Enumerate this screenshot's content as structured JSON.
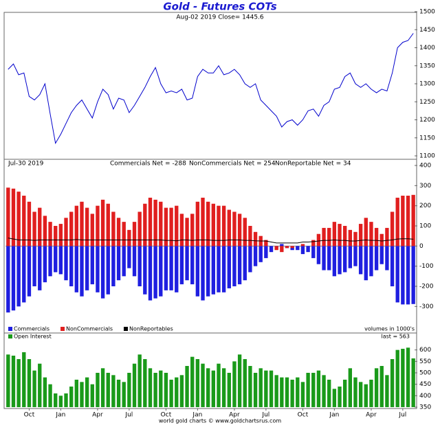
{
  "chart_data": [
    {
      "type": "line",
      "title": "Gold - Futures COTs",
      "subtitle": "Aug-02 2019  Close= 1445.6",
      "color": "#0000cc",
      "values": [
        1340,
        1355,
        1325,
        1330,
        1265,
        1255,
        1270,
        1300,
        1215,
        1135,
        1160,
        1190,
        1220,
        1240,
        1255,
        1230,
        1205,
        1250,
        1285,
        1270,
        1230,
        1260,
        1255,
        1220,
        1240,
        1265,
        1290,
        1320,
        1345,
        1300,
        1275,
        1280,
        1275,
        1285,
        1255,
        1260,
        1320,
        1340,
        1330,
        1330,
        1350,
        1325,
        1330,
        1340,
        1325,
        1300,
        1290,
        1300,
        1255,
        1240,
        1225,
        1210,
        1180,
        1195,
        1200,
        1185,
        1200,
        1225,
        1230,
        1210,
        1240,
        1250,
        1285,
        1290,
        1320,
        1330,
        1300,
        1290,
        1300,
        1285,
        1275,
        1285,
        1280,
        1330,
        1400,
        1415,
        1420,
        1440
      ],
      "ylim": [
        1100,
        1500
      ],
      "yticks": [
        1100,
        1150,
        1200,
        1250,
        1300,
        1350,
        1400,
        1450,
        1500
      ]
    },
    {
      "type": "bar",
      "date_label": "Jul-30 2019",
      "annotations": [
        "Commercials Net = -288",
        "NonCommercials Net = 254",
        "NonReportable Net = 34"
      ],
      "note": "volumes in 1000's",
      "series": [
        {
          "name": "Commercials",
          "color": "#1f1fe0",
          "mark": "bar",
          "values": [
            -330,
            -320,
            -300,
            -280,
            -250,
            -200,
            -220,
            -180,
            -150,
            -130,
            -140,
            -170,
            -200,
            -230,
            -250,
            -220,
            -190,
            -230,
            -260,
            -240,
            -200,
            -170,
            -150,
            -110,
            -150,
            -200,
            -240,
            -270,
            -260,
            -250,
            -220,
            -220,
            -230,
            -190,
            -170,
            -190,
            -250,
            -270,
            -250,
            -240,
            -230,
            -230,
            -210,
            -200,
            -190,
            -170,
            -130,
            -100,
            -80,
            -60,
            -30,
            -10,
            10,
            -10,
            -20,
            -20,
            -40,
            -30,
            -60,
            -90,
            -120,
            -120,
            -150,
            -140,
            -130,
            -110,
            -100,
            -140,
            -170,
            -150,
            -120,
            -90,
            -120,
            -200,
            -280,
            -290,
            -290,
            -288
          ]
        },
        {
          "name": "NonCommercials",
          "color": "#e01f1f",
          "mark": "bar",
          "values": [
            290,
            285,
            270,
            250,
            220,
            170,
            190,
            150,
            120,
            100,
            110,
            140,
            170,
            200,
            220,
            190,
            160,
            200,
            230,
            210,
            170,
            140,
            120,
            80,
            120,
            170,
            210,
            240,
            230,
            220,
            190,
            190,
            200,
            160,
            140,
            160,
            220,
            240,
            220,
            210,
            200,
            200,
            180,
            170,
            160,
            140,
            100,
            70,
            50,
            30,
            0,
            -20,
            -30,
            -10,
            -10,
            0,
            10,
            0,
            30,
            60,
            90,
            90,
            120,
            110,
            100,
            80,
            70,
            110,
            140,
            120,
            90,
            60,
            90,
            170,
            240,
            250,
            250,
            254
          ]
        },
        {
          "name": "NonReportables",
          "color": "#000000",
          "mark": "line",
          "values": [
            40,
            35,
            30,
            30,
            30,
            28,
            30,
            30,
            30,
            30,
            30,
            30,
            30,
            32,
            30,
            30,
            30,
            30,
            30,
            30,
            30,
            30,
            30,
            30,
            30,
            30,
            30,
            30,
            30,
            30,
            28,
            28,
            26,
            30,
            30,
            28,
            30,
            30,
            30,
            28,
            28,
            28,
            30,
            30,
            30,
            28,
            28,
            26,
            25,
            25,
            20,
            15,
            15,
            15,
            15,
            15,
            20,
            20,
            22,
            25,
            28,
            28,
            30,
            28,
            28,
            25,
            25,
            28,
            30,
            28,
            28,
            25,
            28,
            30,
            35,
            36,
            36,
            34
          ]
        }
      ],
      "ylim": [
        -350,
        400
      ],
      "yticks": [
        -300,
        -200,
        -100,
        0,
        100,
        200,
        300,
        400
      ]
    },
    {
      "type": "bar",
      "annotation": "last = 563",
      "categories": [
        null,
        null,
        null,
        null,
        "Oct",
        null,
        null,
        null,
        null,
        null,
        "Jan",
        null,
        null,
        null,
        null,
        null,
        null,
        "Apr",
        null,
        null,
        null,
        null,
        null,
        "Jul",
        null,
        null,
        null,
        null,
        null,
        null,
        "Oct",
        null,
        null,
        null,
        null,
        null,
        "Jan",
        null,
        null,
        null,
        null,
        null,
        null,
        "Apr",
        null,
        null,
        null,
        null,
        null,
        "Jul",
        null,
        null,
        null,
        null,
        null,
        null,
        "Oct",
        null,
        null,
        null,
        null,
        null,
        "Jan",
        null,
        null,
        null,
        null,
        null,
        null,
        "Apr",
        null,
        null,
        null,
        null,
        null,
        "Jul",
        null,
        null
      ],
      "series": [
        {
          "name": "Open Interest",
          "color": "#1a9a1a",
          "values": [
            580,
            575,
            560,
            590,
            560,
            510,
            540,
            480,
            450,
            410,
            400,
            410,
            440,
            470,
            460,
            480,
            450,
            500,
            520,
            500,
            490,
            470,
            460,
            500,
            540,
            580,
            560,
            520,
            500,
            510,
            500,
            470,
            480,
            490,
            530,
            570,
            560,
            540,
            520,
            510,
            540,
            520,
            500,
            550,
            580,
            560,
            530,
            500,
            520,
            510,
            510,
            490,
            480,
            480,
            470,
            480,
            460,
            500,
            500,
            510,
            490,
            470,
            430,
            440,
            470,
            520,
            480,
            460,
            450,
            470,
            520,
            530,
            490,
            560,
            600,
            605,
            610,
            563
          ]
        }
      ],
      "ylim": [
        350,
        620
      ],
      "yticks": [
        350,
        400,
        450,
        500,
        550,
        600
      ]
    }
  ],
  "footer": "world gold charts © www.goldchartsrus.com"
}
